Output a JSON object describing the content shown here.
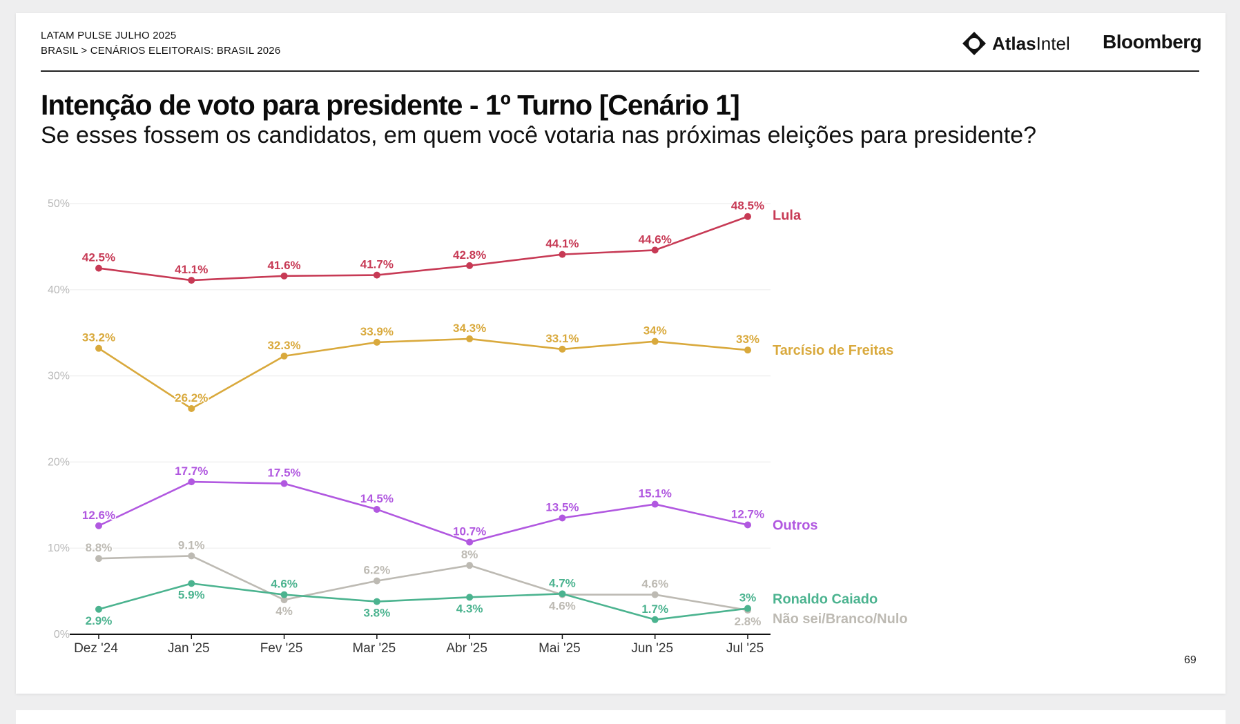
{
  "header": {
    "breadcrumb_line1": "LATAM PULSE JULHO 2025",
    "breadcrumb_line2": "BRASIL > CENÁRIOS ELEITORAIS: BRASIL 2026",
    "atlas_bold": "Atlas",
    "atlas_light": "Intel",
    "bloomberg": "Bloomberg"
  },
  "page_number": "69",
  "colors": {
    "lula": "#c73a55",
    "tarcisio": "#d9a93c",
    "outros": "#b158e0",
    "caiado": "#4bb38f",
    "nao_sei": "#bdbab3",
    "axis": "#111111",
    "grid": "#eeeeee"
  },
  "chart_data": {
    "type": "line",
    "title": "Intenção de voto para presidente - 1º Turno [Cenário 1]",
    "subtitle": "Se esses fossem os candidatos, em quem você votaria nas próximas eleições para presidente?",
    "categories": [
      "Dez '24",
      "Jan '25",
      "Fev '25",
      "Mar '25",
      "Abr '25",
      "Mai '25",
      "Jun '25",
      "Jul '25"
    ],
    "y_ticks": [
      "0%",
      "10%",
      "20%",
      "30%",
      "40%",
      "50%"
    ],
    "ylim": [
      0,
      50
    ],
    "grid": true,
    "legend": "end-of-line labels",
    "series": [
      {
        "key": "lula",
        "name": "Lula",
        "values": [
          42.5,
          41.1,
          41.6,
          41.7,
          42.8,
          44.1,
          44.6,
          48.5
        ],
        "labels": [
          "42.5%",
          "41.1%",
          "41.6%",
          "41.7%",
          "42.8%",
          "44.1%",
          "44.6%",
          "48.5%"
        ],
        "label_pos": [
          "above",
          "above",
          "above",
          "above",
          "above",
          "above",
          "above",
          "above"
        ]
      },
      {
        "key": "tarcisio",
        "name": "Tarcísio de Freitas",
        "values": [
          33.2,
          26.2,
          32.3,
          33.9,
          34.3,
          33.1,
          34,
          33
        ],
        "labels": [
          "33.2%",
          "26.2%",
          "32.3%",
          "33.9%",
          "34.3%",
          "33.1%",
          "34%",
          "33%"
        ],
        "label_pos": [
          "above",
          "above",
          "above",
          "above",
          "above",
          "above",
          "above",
          "above"
        ]
      },
      {
        "key": "outros",
        "name": "Outros",
        "values": [
          12.6,
          17.7,
          17.5,
          14.5,
          10.7,
          13.5,
          15.1,
          12.7
        ],
        "labels": [
          "12.6%",
          "17.7%",
          "17.5%",
          "14.5%",
          "10.7%",
          "13.5%",
          "15.1%",
          "12.7%"
        ],
        "label_pos": [
          "above",
          "above",
          "above",
          "above",
          "above",
          "above",
          "above",
          "above"
        ]
      },
      {
        "key": "nao_sei",
        "name": "Não sei/Branco/Nulo",
        "values": [
          8.8,
          9.1,
          4,
          6.2,
          8,
          4.6,
          4.6,
          2.8
        ],
        "labels": [
          "8.8%",
          "9.1%",
          "4%",
          "6.2%",
          "8%",
          "4.6%",
          "4.6%",
          "2.8%"
        ],
        "label_pos": [
          "above",
          "above",
          "below",
          "above",
          "above",
          "below",
          "above",
          "below"
        ]
      },
      {
        "key": "caiado",
        "name": "Ronaldo Caiado",
        "values": [
          2.9,
          5.9,
          4.6,
          3.8,
          4.3,
          4.7,
          1.7,
          3
        ],
        "labels": [
          "2.9%",
          "5.9%",
          "4.6%",
          "3.8%",
          "4.3%",
          "4.7%",
          "1.7%",
          "3%"
        ],
        "label_pos": [
          "below",
          "below",
          "above",
          "below",
          "below",
          "above",
          "above",
          "above"
        ]
      }
    ]
  }
}
